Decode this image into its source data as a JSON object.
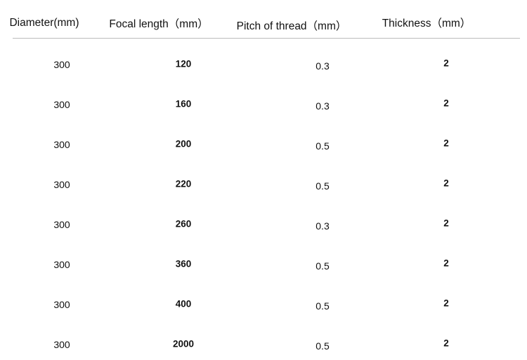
{
  "table": {
    "header": [
      "Diameter(mm)",
      "Focal length（mm）",
      "Pitch of thread（mm）",
      "Thickness（mm）"
    ],
    "rows": [
      [
        "300",
        "120",
        "0.3",
        "2"
      ],
      [
        "300",
        "160",
        "0.3",
        "2"
      ],
      [
        "300",
        "200",
        "0.5",
        "2"
      ],
      [
        "300",
        "220",
        "0.5",
        "2"
      ],
      [
        "300",
        "260",
        "0.3",
        "2"
      ],
      [
        "300",
        "360",
        "0.5",
        "2"
      ],
      [
        "300",
        "400",
        "0.5",
        "2"
      ],
      [
        "300",
        "2000",
        "0.5",
        "2"
      ]
    ]
  }
}
